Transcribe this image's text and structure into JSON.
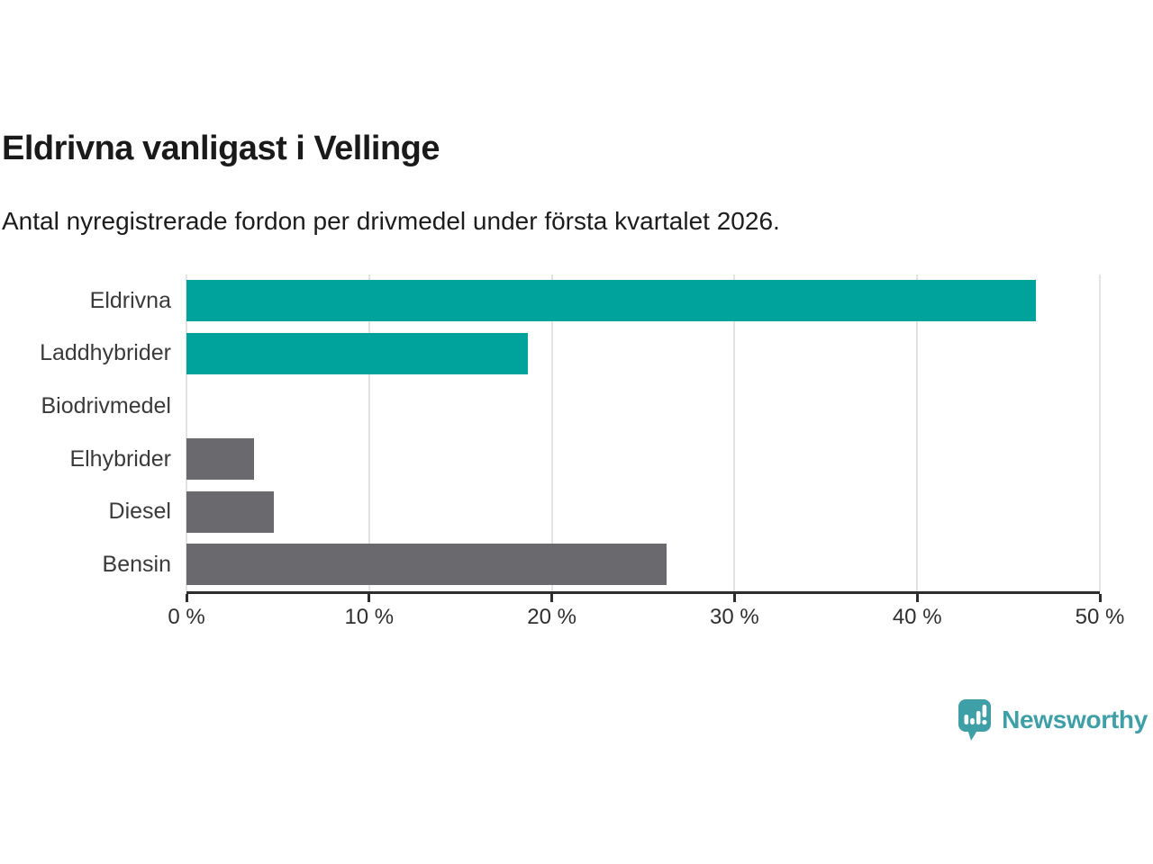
{
  "header": {
    "title": "Eldrivna vanligast i Vellinge",
    "subtitle": "Antal nyregistrerade fordon per drivmedel under första kvartalet 2026."
  },
  "chart_data": {
    "type": "bar",
    "orientation": "horizontal",
    "title": "Eldrivna vanligast i Vellinge",
    "subtitle": "Antal nyregistrerade fordon per drivmedel under första kvartalet 2026.",
    "categories": [
      "Eldrivna",
      "Laddhybrider",
      "Biodrivmedel",
      "Elhybrider",
      "Diesel",
      "Bensin"
    ],
    "values": [
      46.5,
      18.7,
      0,
      3.7,
      4.8,
      26.3
    ],
    "unit": "%",
    "bar_colors": [
      "#00a39b",
      "#00a39b",
      "#6a6a6e",
      "#6a6a6e",
      "#6a6a6e",
      "#6a6a6e"
    ],
    "xlim": [
      0,
      50
    ],
    "xticks": [
      0,
      10,
      20,
      30,
      40,
      50
    ],
    "xtick_labels": [
      "0 %",
      "10 %",
      "20 %",
      "30 %",
      "40 %",
      "50 %"
    ],
    "grid": "vertical-gridlines",
    "legend": "none",
    "xlabel": "",
    "ylabel": ""
  },
  "footer": {
    "logo_text": "Newsworthy"
  },
  "colors": {
    "accent_teal": "#00a39b",
    "neutral_gray": "#6a6a6e",
    "logo_teal": "#3f9fa7",
    "axis_line": "#2d2d2d",
    "gridline": "#e3e3e3",
    "text_dark": "#1a1a1a",
    "text_label": "#3a3a3a",
    "background": "#ffffff"
  }
}
